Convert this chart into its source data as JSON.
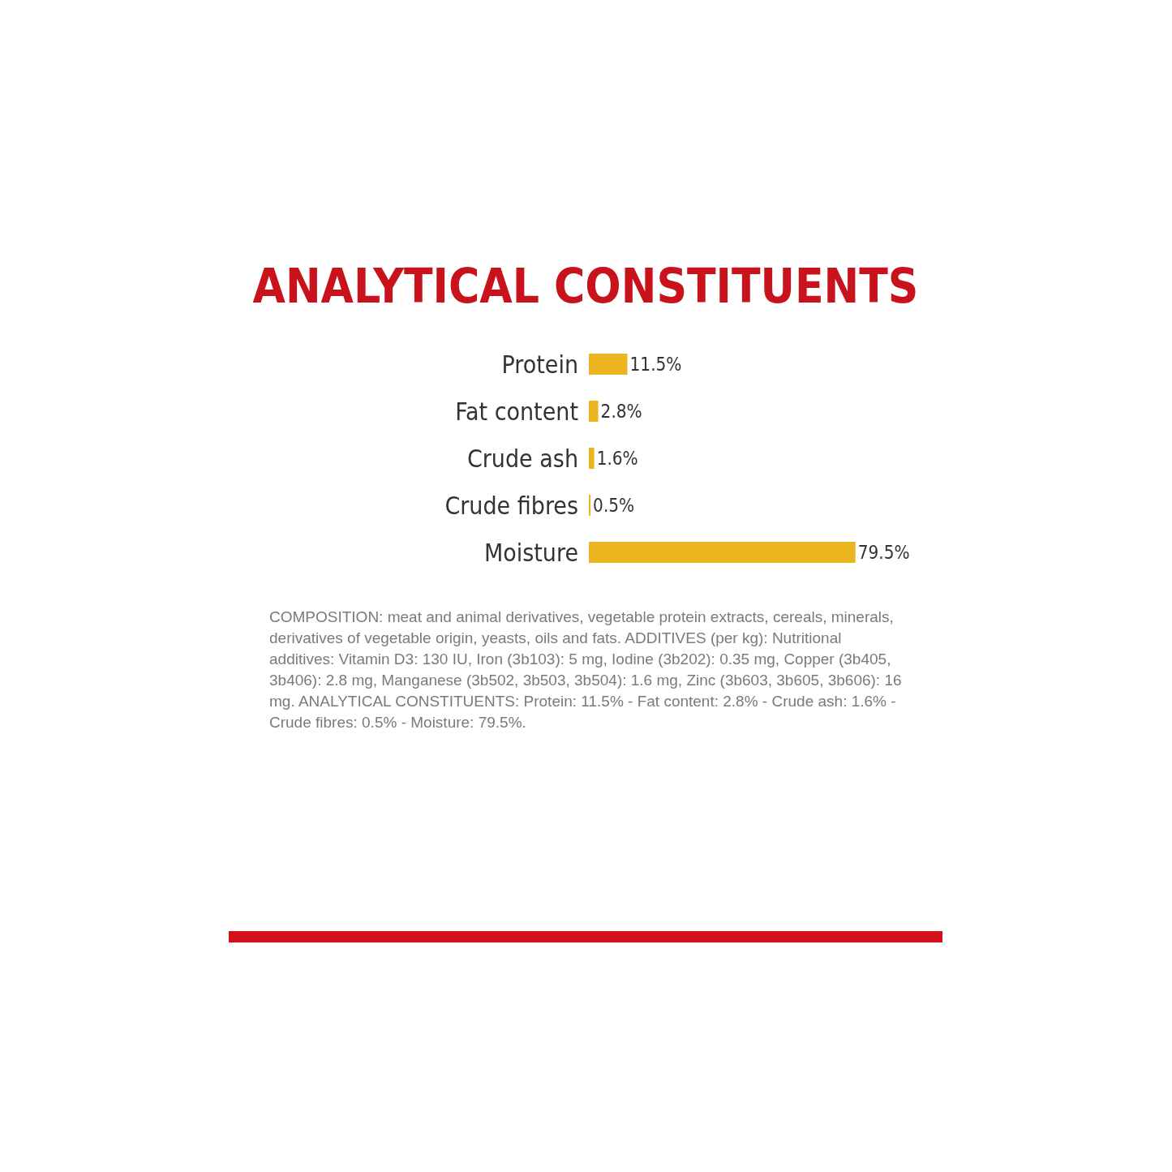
{
  "chart_data": {
    "type": "bar",
    "orientation": "horizontal",
    "title": "ANALYTICAL CONSTITUENTS",
    "categories": [
      "Protein",
      "Fat content",
      "Crude ash",
      "Crude fibres",
      "Moisture"
    ],
    "values": [
      11.5,
      2.8,
      1.6,
      0.5,
      79.5
    ],
    "value_labels": [
      "11.5%",
      "2.8%",
      "1.6%",
      "0.5%",
      "79.5%"
    ],
    "color": "#ebb51f",
    "tick_labels": "y",
    "grid": false,
    "legend": false,
    "annotations": [
      "COMPOSITION: meat and animal derivatives, vegetable protein extracts, cereals, minerals, derivatives of vegetable origin, yeasts, oils and fats. ADDITIVES (per kg): Nutritional additives: Vitamin D3: 130 IU, Iron (3b103): 5 mg, Iodine (3b202): 0.35 mg, Copper (3b405, 3b406): 2.8 mg, Manganese (3b502, 3b503, 3b504): 1.6 mg, Zinc (3b603, 3b605, 3b606): 16 mg. ANALYTICAL CONSTITUENTS: Protein: 11.5% - Fat content: 2.8% - Crude ash: 1.6% - Crude fibres: 0.5% - Moisture: 79.5%."
    ]
  }
}
